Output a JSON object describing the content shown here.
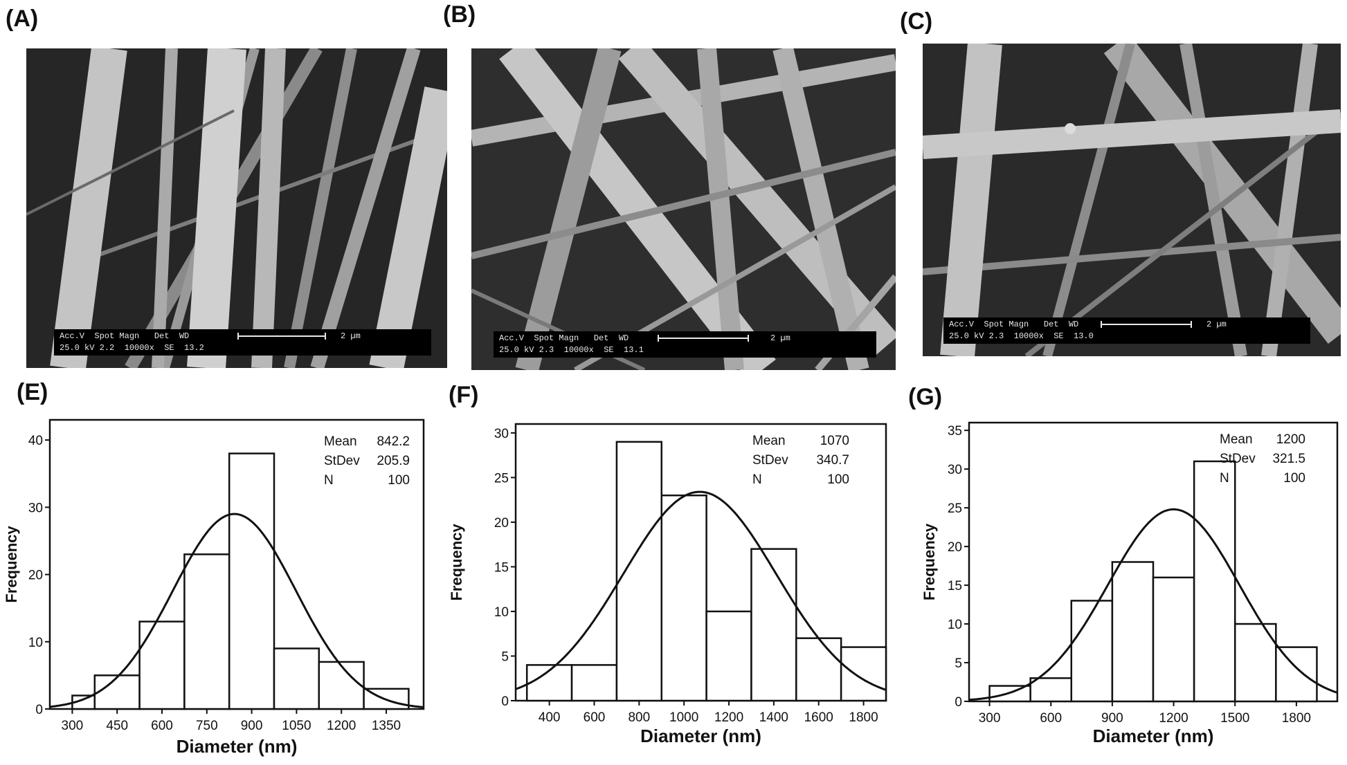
{
  "panels": {
    "A": {
      "label": "(A)"
    },
    "B": {
      "label": "(B)"
    },
    "C": {
      "label": "(C)"
    },
    "E": {
      "label": "(E)"
    },
    "F": {
      "label": "(F)"
    },
    "G": {
      "label": "(G)"
    }
  },
  "sem_images": [
    {
      "line1": "Acc.V  Spot Magn   Det  WD",
      "line2": "25.0 kV 2.2  10000x  SE  13.2",
      "scale": "2 µm"
    },
    {
      "line1": "Acc.V  Spot Magn   Det  WD",
      "line2": "25.0 kV 2.3  10000x  SE  13.1",
      "scale": "2 µm"
    },
    {
      "line1": "Acc.V  Spot Magn   Det  WD",
      "line2": "25.0 kV 2.3  10000x  SE  13.0",
      "scale": "2 µm"
    }
  ],
  "chart_data": [
    {
      "type": "bar",
      "xlabel": "Diameter (nm)",
      "ylabel": "Frequency",
      "xlim": [
        225,
        1475
      ],
      "ylim": [
        0,
        43
      ],
      "xticks": [
        300,
        450,
        600,
        750,
        900,
        1050,
        1200,
        1350
      ],
      "yticks": [
        0,
        10,
        20,
        30,
        40
      ],
      "bins": [
        {
          "from": 300,
          "to": 375,
          "value": 2
        },
        {
          "from": 375,
          "to": 525,
          "value": 5
        },
        {
          "from": 525,
          "to": 675,
          "value": 13
        },
        {
          "from": 675,
          "to": 825,
          "value": 23
        },
        {
          "from": 825,
          "to": 975,
          "value": 38
        },
        {
          "from": 975,
          "to": 1125,
          "value": 9
        },
        {
          "from": 1125,
          "to": 1275,
          "value": 7
        },
        {
          "from": 1275,
          "to": 1425,
          "value": 3
        }
      ],
      "fit": {
        "mean": 842.2,
        "stdev": 205.9,
        "n": 100,
        "peak": 29
      },
      "stats": [
        [
          "Mean",
          "842.2"
        ],
        [
          "StDev",
          "205.9"
        ],
        [
          "N",
          "100"
        ]
      ]
    },
    {
      "type": "bar",
      "xlabel": "Diameter (nm)",
      "ylabel": "Frequency",
      "xlim": [
        250,
        1900
      ],
      "ylim": [
        0,
        31
      ],
      "xticks": [
        400,
        600,
        800,
        1000,
        1200,
        1400,
        1600,
        1800
      ],
      "yticks": [
        0,
        5,
        10,
        15,
        20,
        25,
        30
      ],
      "bins": [
        {
          "from": 300,
          "to": 500,
          "value": 4
        },
        {
          "from": 500,
          "to": 700,
          "value": 4
        },
        {
          "from": 700,
          "to": 900,
          "value": 29
        },
        {
          "from": 900,
          "to": 1100,
          "value": 23
        },
        {
          "from": 1100,
          "to": 1300,
          "value": 10
        },
        {
          "from": 1300,
          "to": 1500,
          "value": 17
        },
        {
          "from": 1500,
          "to": 1700,
          "value": 7
        },
        {
          "from": 1700,
          "to": 1900,
          "value": 6
        }
      ],
      "fit": {
        "mean": 1070,
        "stdev": 340.7,
        "n": 100,
        "peak": 23.4
      },
      "stats": [
        [
          "Mean",
          "1070"
        ],
        [
          "StDev",
          "340.7"
        ],
        [
          "N",
          "100"
        ]
      ]
    },
    {
      "type": "bar",
      "xlabel": "Diameter (nm)",
      "ylabel": "Frequency",
      "xlim": [
        200,
        2000
      ],
      "ylim": [
        0,
        36
      ],
      "xticks": [
        300,
        600,
        900,
        1200,
        1500,
        1800
      ],
      "yticks": [
        0,
        5,
        10,
        15,
        20,
        25,
        30,
        35
      ],
      "bins": [
        {
          "from": 300,
          "to": 500,
          "value": 2
        },
        {
          "from": 500,
          "to": 700,
          "value": 3
        },
        {
          "from": 700,
          "to": 900,
          "value": 13
        },
        {
          "from": 900,
          "to": 1100,
          "value": 18
        },
        {
          "from": 1100,
          "to": 1300,
          "value": 16
        },
        {
          "from": 1300,
          "to": 1500,
          "value": 31
        },
        {
          "from": 1500,
          "to": 1700,
          "value": 10
        },
        {
          "from": 1700,
          "to": 1900,
          "value": 7
        }
      ],
      "fit": {
        "mean": 1200,
        "stdev": 321.5,
        "n": 100,
        "peak": 24.8
      },
      "stats": [
        [
          "Mean",
          "1200"
        ],
        [
          "StDev",
          "321.5"
        ],
        [
          "N",
          "100"
        ]
      ]
    }
  ]
}
